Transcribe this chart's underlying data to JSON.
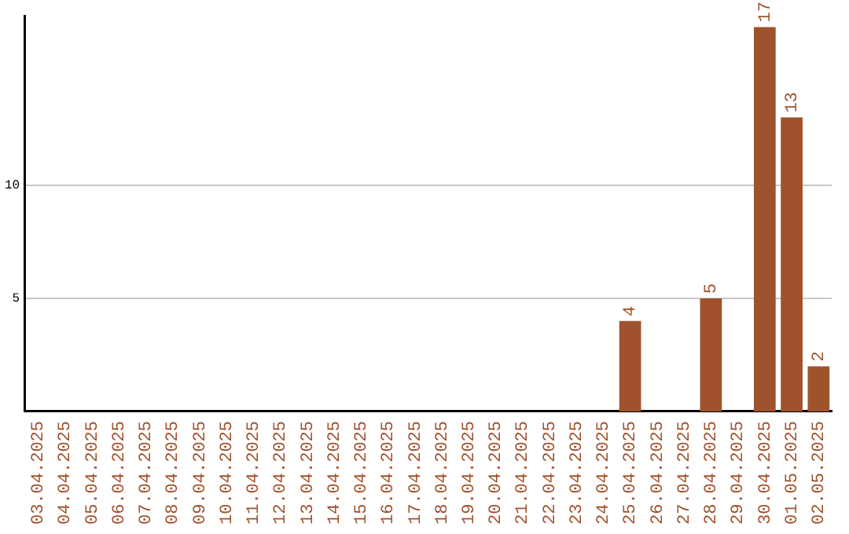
{
  "chart_data": {
    "type": "bar",
    "categories": [
      "03.04.2025",
      "04.04.2025",
      "05.04.2025",
      "06.04.2025",
      "07.04.2025",
      "08.04.2025",
      "09.04.2025",
      "10.04.2025",
      "11.04.2025",
      "12.04.2025",
      "13.04.2025",
      "14.04.2025",
      "15.04.2025",
      "16.04.2025",
      "17.04.2025",
      "18.04.2025",
      "19.04.2025",
      "20.04.2025",
      "21.04.2025",
      "22.04.2025",
      "23.04.2025",
      "24.04.2025",
      "25.04.2025",
      "26.04.2025",
      "27.04.2025",
      "28.04.2025",
      "29.04.2025",
      "30.04.2025",
      "01.05.2025",
      "02.05.2025"
    ],
    "values": [
      0,
      0,
      0,
      0,
      0,
      0,
      0,
      0,
      0,
      0,
      0,
      0,
      0,
      0,
      0,
      0,
      0,
      0,
      0,
      0,
      0,
      0,
      4,
      0,
      0,
      5,
      0,
      17,
      13,
      2
    ],
    "value_labels": [
      null,
      null,
      null,
      null,
      null,
      null,
      null,
      null,
      null,
      null,
      null,
      null,
      null,
      null,
      null,
      null,
      null,
      null,
      null,
      null,
      null,
      null,
      "4",
      null,
      null,
      "5",
      null,
      "17",
      "13",
      "2"
    ],
    "color": "#a0522d",
    "ylim": [
      0,
      17.5
    ],
    "yticks": [
      5,
      10
    ],
    "grid": "y",
    "legend": false
  }
}
